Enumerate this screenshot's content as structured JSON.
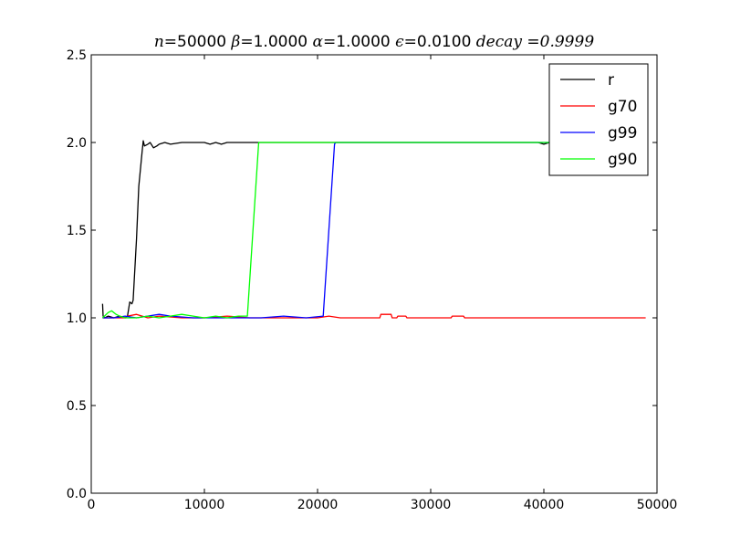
{
  "chart_data": {
    "type": "line",
    "title_parts": [
      {
        "text": "n",
        "math": true
      },
      {
        "text": "=50000 ",
        "math": false
      },
      {
        "text": "β",
        "math": true
      },
      {
        "text": "=1.0000 ",
        "math": false
      },
      {
        "text": "α",
        "math": true
      },
      {
        "text": "=1.0000 ",
        "math": false
      },
      {
        "text": "ϵ",
        "math": true
      },
      {
        "text": "=0.0100 ",
        "math": false
      },
      {
        "text": "decay",
        "math": true
      },
      {
        "text": " =0.9999",
        "math": true
      }
    ],
    "xlim": [
      0,
      50000
    ],
    "ylim": [
      0.0,
      2.5
    ],
    "xticks": [
      0,
      10000,
      20000,
      30000,
      40000,
      50000
    ],
    "xtick_labels": [
      "0",
      "10000",
      "20000",
      "30000",
      "40000",
      "50000"
    ],
    "yticks": [
      0.0,
      0.5,
      1.0,
      1.5,
      2.0,
      2.5
    ],
    "ytick_labels": [
      "0.0",
      "0.5",
      "1.0",
      "1.5",
      "2.0",
      "2.5"
    ],
    "grid": false,
    "legend_position": "top-right",
    "series": [
      {
        "name": "r",
        "color": "#000000",
        "points": [
          [
            1000,
            1.08
          ],
          [
            1050,
            1.01
          ],
          [
            1200,
            1.0
          ],
          [
            1500,
            1.01
          ],
          [
            2000,
            1.0
          ],
          [
            2500,
            1.01
          ],
          [
            3000,
            1.0
          ],
          [
            3200,
            1.01
          ],
          [
            3400,
            1.09
          ],
          [
            3600,
            1.08
          ],
          [
            3700,
            1.1
          ],
          [
            4000,
            1.45
          ],
          [
            4200,
            1.75
          ],
          [
            4500,
            1.95
          ],
          [
            4600,
            2.01
          ],
          [
            4700,
            1.98
          ],
          [
            5000,
            1.99
          ],
          [
            5200,
            2.0
          ],
          [
            5500,
            1.97
          ],
          [
            5800,
            1.98
          ],
          [
            6000,
            1.99
          ],
          [
            6500,
            2.0
          ],
          [
            7000,
            1.99
          ],
          [
            8000,
            2.0
          ],
          [
            9000,
            2.0
          ],
          [
            10000,
            2.0
          ],
          [
            10500,
            1.99
          ],
          [
            11000,
            2.0
          ],
          [
            11500,
            1.99
          ],
          [
            12000,
            2.0
          ],
          [
            12500,
            2.0
          ],
          [
            14000,
            2.0
          ],
          [
            20000,
            2.0
          ],
          [
            30000,
            2.0
          ],
          [
            39500,
            2.0
          ],
          [
            40000,
            1.99
          ],
          [
            40500,
            2.0
          ],
          [
            49000,
            2.0
          ]
        ]
      },
      {
        "name": "g70",
        "color": "#ff0000",
        "points": [
          [
            1000,
            1.0
          ],
          [
            3000,
            1.0
          ],
          [
            3200,
            1.01
          ],
          [
            4000,
            1.02
          ],
          [
            5000,
            1.0
          ],
          [
            6000,
            1.01
          ],
          [
            8000,
            1.0
          ],
          [
            10000,
            1.0
          ],
          [
            12000,
            1.01
          ],
          [
            14000,
            1.0
          ],
          [
            18000,
            1.0
          ],
          [
            20000,
            1.0
          ],
          [
            21000,
            1.01
          ],
          [
            22000,
            1.0
          ],
          [
            25500,
            1.0
          ],
          [
            25600,
            1.02
          ],
          [
            26500,
            1.02
          ],
          [
            26600,
            1.0
          ],
          [
            27000,
            1.0
          ],
          [
            27100,
            1.01
          ],
          [
            27800,
            1.01
          ],
          [
            27900,
            1.0
          ],
          [
            31800,
            1.0
          ],
          [
            31900,
            1.01
          ],
          [
            32900,
            1.01
          ],
          [
            33000,
            1.0
          ],
          [
            49000,
            1.0
          ]
        ]
      },
      {
        "name": "g99",
        "color": "#0000ff",
        "points": [
          [
            1000,
            1.0
          ],
          [
            2000,
            1.0
          ],
          [
            3000,
            1.01
          ],
          [
            4000,
            1.0
          ],
          [
            6000,
            1.02
          ],
          [
            7000,
            1.01
          ],
          [
            9000,
            1.0
          ],
          [
            12000,
            1.0
          ],
          [
            15000,
            1.0
          ],
          [
            17000,
            1.01
          ],
          [
            19000,
            1.0
          ],
          [
            20500,
            1.01
          ],
          [
            21500,
            1.99
          ],
          [
            21600,
            2.0
          ],
          [
            30000,
            2.0
          ],
          [
            40000,
            2.0
          ],
          [
            49000,
            2.0
          ]
        ]
      },
      {
        "name": "g90",
        "color": "#00ff00",
        "points": [
          [
            1000,
            1.0
          ],
          [
            1500,
            1.03
          ],
          [
            1800,
            1.04
          ],
          [
            2200,
            1.02
          ],
          [
            2500,
            1.01
          ],
          [
            3000,
            1.0
          ],
          [
            4000,
            1.0
          ],
          [
            5000,
            1.01
          ],
          [
            6000,
            1.0
          ],
          [
            7000,
            1.01
          ],
          [
            8000,
            1.02
          ],
          [
            9000,
            1.01
          ],
          [
            10000,
            1.0
          ],
          [
            11000,
            1.01
          ],
          [
            12000,
            1.0
          ],
          [
            13000,
            1.01
          ],
          [
            13800,
            1.01
          ],
          [
            14800,
            2.0
          ],
          [
            20000,
            2.0
          ],
          [
            30000,
            2.0
          ],
          [
            40000,
            2.0
          ],
          [
            49000,
            2.0
          ]
        ]
      }
    ]
  }
}
